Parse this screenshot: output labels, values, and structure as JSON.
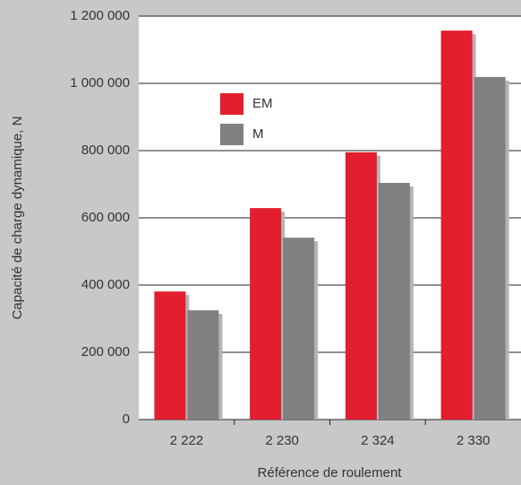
{
  "chart_data": {
    "type": "bar",
    "x_label": "Référence de roulement",
    "y_label": "Capacité de charge dynamique, N",
    "categories": [
      "2 222",
      "2 230",
      "2 324",
      "2 330"
    ],
    "series": [
      {
        "name": "EM",
        "color": "#e31e2f",
        "values": [
          381000,
          629000,
          795000,
          1157000
        ]
      },
      {
        "name": "M",
        "color": "#808080",
        "values": [
          325000,
          541000,
          704000,
          1019000
        ]
      }
    ],
    "ylim": [
      0,
      1200000
    ],
    "yticks": [
      0,
      {
        "value": 200000,
        "label": "200 000"
      },
      {
        "value": 400000,
        "label": "400 000"
      },
      {
        "value": 600000,
        "label": "600 000"
      },
      {
        "value": 800000,
        "label": "800 000"
      },
      {
        "value": 1000000,
        "label": "1 000 000"
      },
      {
        "value": 1200000,
        "label": "1 200 000"
      }
    ],
    "grid": true,
    "legend": "upper left"
  }
}
